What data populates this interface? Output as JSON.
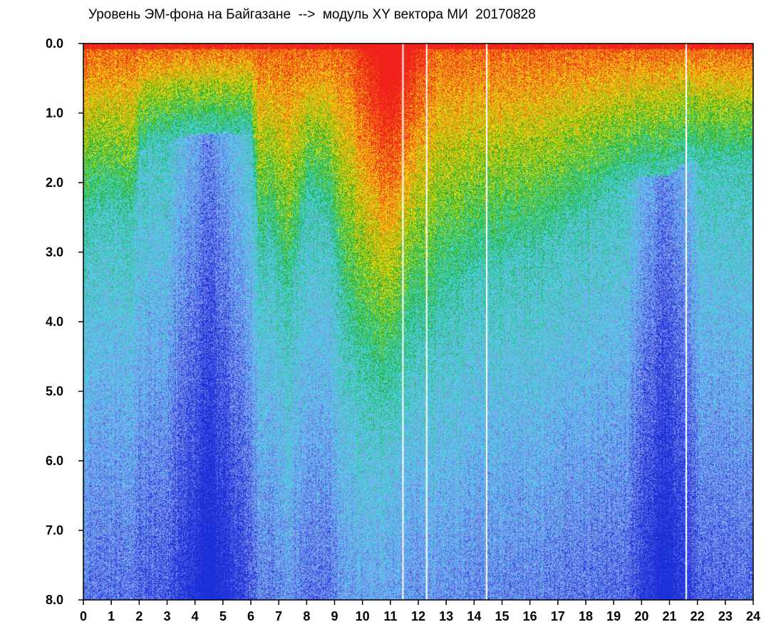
{
  "chart_data": {
    "type": "heatmap",
    "title": "Уровень ЭМ-фона на Байгазане  -->  модуль XY вектора МИ  20170828",
    "xlabel": "",
    "ylabel": "",
    "x_ticks": [
      "0",
      "1",
      "2",
      "3",
      "4",
      "5",
      "6",
      "7",
      "8",
      "9",
      "10",
      "11",
      "12",
      "13",
      "14",
      "15",
      "16",
      "17",
      "18",
      "19",
      "20",
      "21",
      "22",
      "23",
      "24"
    ],
    "y_ticks": [
      "0.0",
      "1.0",
      "2.0",
      "3.0",
      "4.0",
      "5.0",
      "6.0",
      "7.0",
      "8.0"
    ],
    "xlim": [
      0,
      24
    ],
    "ylim": [
      0,
      8
    ],
    "y_inverted": true,
    "grid": false,
    "colors": {
      "low": "#1a2fd8",
      "mid_low": "#8f9df0",
      "mid": "#3fe0e8",
      "mid_high": "#17a317",
      "high": "#f2ec10",
      "very_high": "#f5a210",
      "max": "#f0201a",
      "background": "#ffffff",
      "axis": "#000000"
    },
    "gaps_hours": [
      11.45,
      12.3,
      14.45,
      21.6
    ]
  }
}
